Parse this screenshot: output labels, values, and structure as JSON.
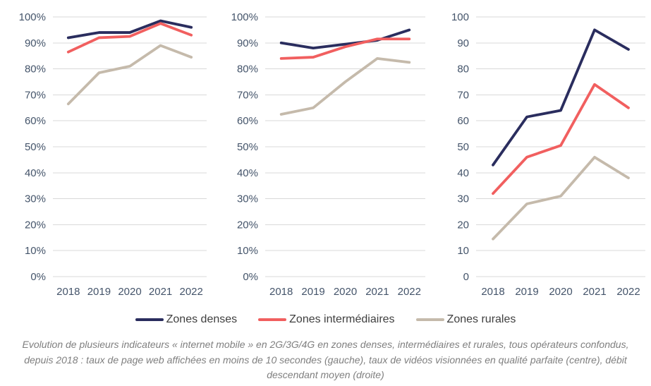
{
  "colors": {
    "zones_denses": "#2A2D5E",
    "zones_intermediaires": "#F15F5F",
    "zones_rurales": "#C5BAAB",
    "gridline": "#D9D9D9",
    "tick_label": "#44546A",
    "legend_text": "#3F3F3F",
    "caption_text": "#7F7F7F",
    "background": "#FFFFFF"
  },
  "legend": {
    "items": [
      {
        "label": "Zones denses",
        "color_key": "zones_denses"
      },
      {
        "label": "Zones intermédiaires",
        "color_key": "zones_intermediaires"
      },
      {
        "label": "Zones rurales",
        "color_key": "zones_rurales"
      }
    ]
  },
  "caption": "Evolution de plusieurs indicateurs « internet mobile » en 2G/3G/4G en zones denses, intermédiaires et rurales, tous opérateurs confondus, depuis 2018 : taux de page web affichées en moins de 10 secondes (gauche), taux de vidéos visionnées en qualité parfaite (centre), débit descendant moyen (droite)",
  "chart_data": [
    {
      "type": "line",
      "position": "left",
      "title": "",
      "subtitle_from_caption": "taux de page web affichées en moins de 10 secondes",
      "categories": [
        "2018",
        "2019",
        "2020",
        "2021",
        "2022"
      ],
      "series": [
        {
          "name": "Zones denses",
          "color_key": "zones_denses",
          "values": [
            92,
            94,
            94,
            98.5,
            96
          ]
        },
        {
          "name": "Zones intermédiaires",
          "color_key": "zones_intermediaires",
          "values": [
            86.5,
            92,
            92.5,
            97.5,
            93
          ]
        },
        {
          "name": "Zones rurales",
          "color_key": "zones_rurales",
          "values": [
            66.5,
            78.5,
            81,
            89,
            84.5
          ]
        }
      ],
      "xlabel": "",
      "ylabel": "",
      "ylim": [
        0,
        100
      ],
      "ytick_step": 10,
      "ytick_suffix": "%",
      "grid": true,
      "legend_position": "shared-bottom"
    },
    {
      "type": "line",
      "position": "center",
      "title": "",
      "subtitle_from_caption": "taux de vidéos visionnées en qualité parfaite",
      "categories": [
        "2018",
        "2019",
        "2020",
        "2021",
        "2022"
      ],
      "series": [
        {
          "name": "Zones denses",
          "color_key": "zones_denses",
          "values": [
            90,
            88,
            89.5,
            91,
            95
          ]
        },
        {
          "name": "Zones intermédiaires",
          "color_key": "zones_intermediaires",
          "values": [
            84,
            84.5,
            88.5,
            91.5,
            91.5
          ]
        },
        {
          "name": "Zones rurales",
          "color_key": "zones_rurales",
          "values": [
            62.5,
            65,
            75,
            84,
            82.5
          ]
        }
      ],
      "xlabel": "",
      "ylabel": "",
      "ylim": [
        0,
        100
      ],
      "ytick_step": 10,
      "ytick_suffix": "%",
      "grid": true,
      "legend_position": "shared-bottom"
    },
    {
      "type": "line",
      "position": "right",
      "title": "",
      "subtitle_from_caption": "débit descendant moyen",
      "categories": [
        "2018",
        "2019",
        "2020",
        "2021",
        "2022"
      ],
      "series": [
        {
          "name": "Zones denses",
          "color_key": "zones_denses",
          "values": [
            43,
            61.5,
            64,
            95,
            87.5
          ]
        },
        {
          "name": "Zones intermédiaires",
          "color_key": "zones_intermediaires",
          "values": [
            32,
            46,
            50.5,
            74,
            65
          ]
        },
        {
          "name": "Zones rurales",
          "color_key": "zones_rurales",
          "values": [
            14.5,
            28,
            31,
            46,
            38
          ]
        }
      ],
      "xlabel": "",
      "ylabel": "",
      "ylim": [
        0,
        100
      ],
      "ytick_step": 10,
      "ytick_suffix": "",
      "grid": true,
      "legend_position": "shared-bottom"
    }
  ]
}
